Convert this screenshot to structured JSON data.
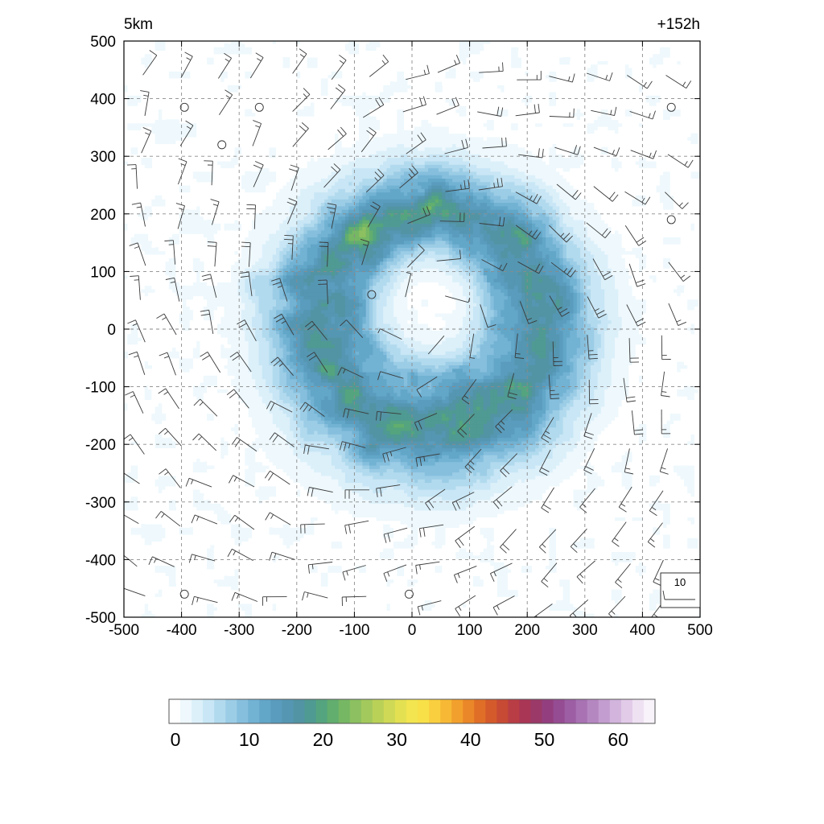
{
  "chart_data": {
    "type": "heatmap",
    "title_left": "5km",
    "title_right": "+152h",
    "xlim": [
      -500,
      500
    ],
    "ylim": [
      -500,
      500
    ],
    "x_ticks": [
      "-500",
      "-400",
      "-300",
      "-200",
      "-100",
      "0",
      "100",
      "200",
      "300",
      "400",
      "500"
    ],
    "y_ticks": [
      "500",
      "400",
      "300",
      "200",
      "100",
      "0",
      "-100",
      "-200",
      "-300",
      "-400",
      "-500"
    ],
    "grid": true,
    "colorbar": {
      "min": 0,
      "max": 65,
      "tick_labels": [
        "0",
        "10",
        "20",
        "30",
        "40",
        "50",
        "60"
      ],
      "colors": [
        "#ffffff",
        "#eef8fd",
        "#dcf0fa",
        "#c8e6f5",
        "#b2daee",
        "#9ccde6",
        "#86bfdd",
        "#72b2d3",
        "#62a6c8",
        "#5a9cbd",
        "#5597b2",
        "#5294a4",
        "#4f9a92",
        "#54a57f",
        "#62ae6e",
        "#76b764",
        "#8cc060",
        "#a3c95c",
        "#bad158",
        "#d0d955",
        "#e3e052",
        "#f2e54f",
        "#f8e048",
        "#f9cf3f",
        "#f7b935",
        "#f2a02d",
        "#ea8728",
        "#e06e27",
        "#d45a2c",
        "#c74a35",
        "#b93d45",
        "#aa3656",
        "#9b3a69",
        "#933f7f",
        "#964c92",
        "#9d5ea4",
        "#a872b3",
        "#b587c1",
        "#c39dcf",
        "#d2b4dc",
        "#e1cbe8",
        "#eee1f2",
        "#f8f2fa"
      ]
    },
    "field": {
      "description_free": true,
      "rainband": {
        "cx": 30,
        "cy": 0,
        "rx": 345,
        "ry": 335,
        "intensity": 10
      },
      "eyewall": {
        "cx": 40,
        "cy": 20,
        "rx": 200,
        "ry": 190,
        "intensity": 14
      },
      "eye": {
        "cx": 30,
        "cy": 40,
        "rx": 110,
        "ry": 120,
        "intensity": 0
      },
      "cells": [
        {
          "x": -90,
          "y": 180,
          "v": 17
        },
        {
          "x": 40,
          "y": 210,
          "v": 16
        },
        {
          "x": -280,
          "y": 80,
          "v": 15
        },
        {
          "x": -210,
          "y": 90,
          "v": 15
        },
        {
          "x": 180,
          "y": 180,
          "v": 15
        },
        {
          "x": -80,
          "y": -210,
          "v": 15
        },
        {
          "x": -10,
          "y": -160,
          "v": 14
        }
      ]
    },
    "wind_barbs": {
      "spacing": 65,
      "vortex_center": [
        30,
        20
      ],
      "max_speed": 28,
      "rmw": 230,
      "reference_label": "10",
      "calm_points": [
        [
          -395,
          385
        ],
        [
          -265,
          385
        ],
        [
          -330,
          320
        ],
        [
          450,
          385
        ],
        [
          450,
          190
        ],
        [
          -70,
          60
        ],
        [
          -395,
          -460
        ],
        [
          -5,
          -460
        ]
      ]
    }
  }
}
